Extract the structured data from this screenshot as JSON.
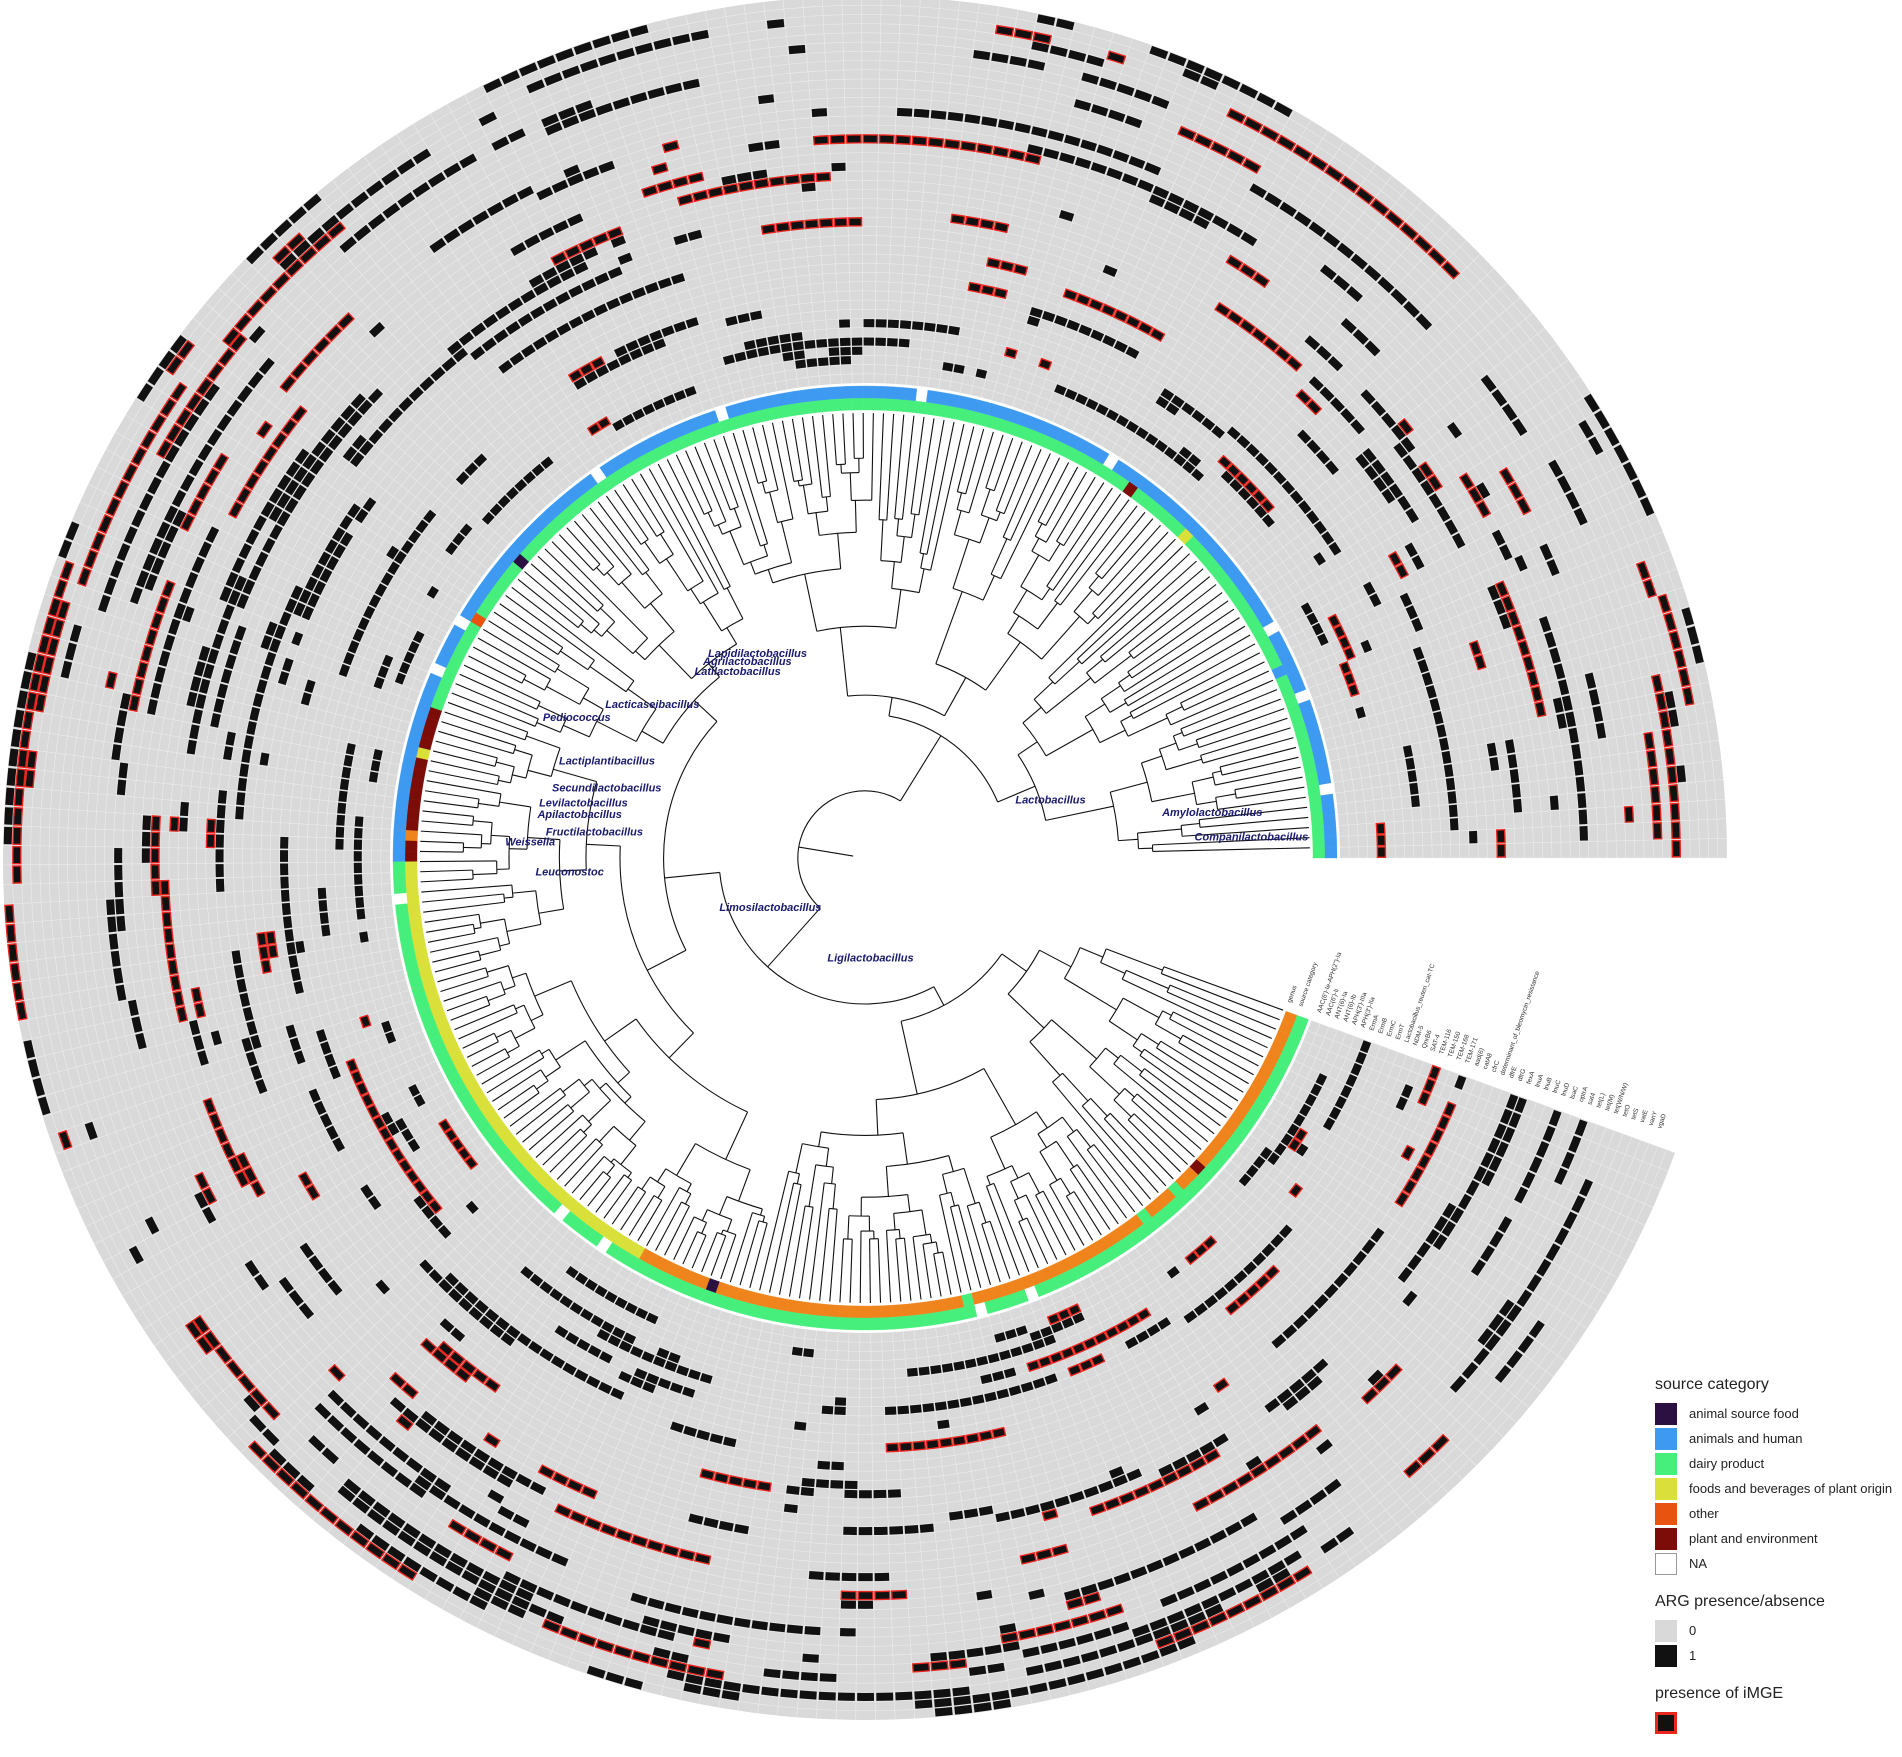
{
  "clade_labels": [
    "Lapidilactobacillus",
    "Agrilactobacillus",
    "Latilactobacillus",
    "Lacticaseibacillus",
    "Pediococcus",
    "Lactiplantibacillus",
    "Secundilactobacillus",
    "Levilactobacillus",
    "Apilactobacillus",
    "Fructilactobacillus",
    "Weissella",
    "Leuconostoc",
    "Limosilactobacillus",
    "Ligilactobacillus",
    "Lactobacillus",
    "Amylolactobacillus",
    "Companilactobacillus"
  ],
  "ring_labels": [
    "genus",
    "source category",
    "AAC(6')-Ie-APH(2'')-Ia",
    "AAC(6')-Ii",
    "ANT(6)-Ia",
    "ANT(6)-Ib",
    "APH(3')-IIIa",
    "APH(3')-IIa",
    "ErmA",
    "ErmB",
    "ErmC",
    "ErmT",
    "Lactobacillus_reuteri_cat-TC",
    "NDM-5",
    "QnrB6",
    "SAT-4",
    "TEM-116",
    "TEM-150",
    "TEM-168",
    "TEM-171",
    "aad(6)",
    "catA8",
    "cfrC",
    "determinant_of_bleomycin_resistance",
    "dfrE",
    "dfrG",
    "fexA",
    "lnuA",
    "lnuB",
    "lnuC",
    "lnuD",
    "lsaC",
    "optrA",
    "sat4",
    "tet(L)",
    "tet(M)",
    "tet(W/N/W)",
    "tetO",
    "tetS",
    "vatE",
    "vanY",
    "vgaD"
  ],
  "colors": {
    "animal source food": "#2b1141",
    "animals and human": "#3d9af0",
    "dairy product": "#46ef7c",
    "foods and beverages of plant origin": "#d9e03a",
    "other": "#e8530f",
    "plant and environment": "#7b0c08",
    "NA": "#ffffff",
    "absent": "#d9d9d9",
    "present": "#111111",
    "iMGE_border": "#e8261f",
    "clade_text": "#1a1a6e",
    "tree": "#111111",
    "sector_bars": [
      "#3d9af0",
      "#46ef7c",
      "#e8530f",
      "#7b0c08",
      "#d9e03a",
      "#2b1141",
      "#f0841c"
    ]
  },
  "legend": {
    "source_title": "source category",
    "source_items": [
      {
        "label": "animal source food",
        "color": "#2b1141"
      },
      {
        "label": "animals and human",
        "color": "#3d9af0"
      },
      {
        "label": "dairy product",
        "color": "#46ef7c"
      },
      {
        "label": "foods and beverages of plant origin",
        "color": "#d9e03a"
      },
      {
        "label": "other",
        "color": "#e8530f"
      },
      {
        "label": "plant and environment",
        "color": "#7b0c08"
      },
      {
        "label": "NA",
        "color": "#ffffff"
      }
    ],
    "arg_title": "ARG presence/absence",
    "arg_items": [
      {
        "label": "0",
        "color": "#d9d9d9"
      },
      {
        "label": "1",
        "color": "#111111"
      }
    ],
    "imge_title": "presence of iMGE"
  }
}
